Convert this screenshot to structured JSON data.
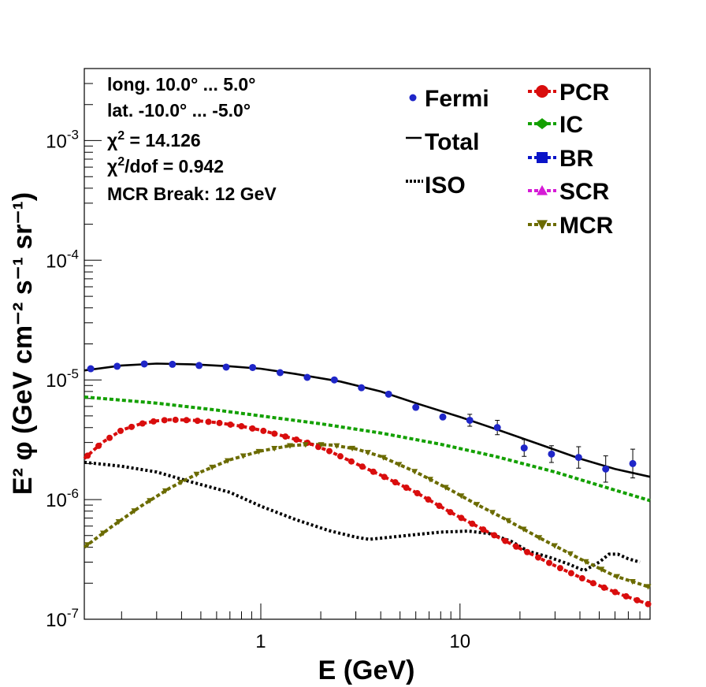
{
  "chart_data": {
    "type": "line",
    "xlabel": "E (GeV)",
    "ylabel": "E² φ (GeV cm⁻² s⁻¹ sr⁻¹)",
    "xscale": "log",
    "yscale": "log",
    "xlim": [
      0.13,
      90
    ],
    "ylim": [
      1e-07,
      0.004
    ],
    "grid": false,
    "legend_placement": "top-right",
    "x_ticks": [
      {
        "value": 1,
        "label": "1"
      },
      {
        "value": 10,
        "label": "10"
      }
    ],
    "y_ticks": [
      {
        "value": 1e-07,
        "base": "10",
        "exp": "-7"
      },
      {
        "value": 1e-06,
        "base": "10",
        "exp": "-6"
      },
      {
        "value": 1e-05,
        "base": "10",
        "exp": "-5"
      },
      {
        "value": 0.0001,
        "base": "10",
        "exp": "-4"
      },
      {
        "value": 0.001,
        "base": "10",
        "exp": "-3"
      }
    ],
    "info": [
      "long. 10.0° ... 5.0°",
      "lat. -10.0° ... -5.0°",
      "χ² = 14.126",
      "χ²/dof = 0.942",
      "MCR Break: 12 GeV"
    ],
    "legend_col1": [
      {
        "name": "Fermi",
        "color": "#1f26c8",
        "marker": "dot"
      },
      {
        "name": "Total",
        "color": "#000000",
        "marker": "line"
      },
      {
        "name": "ISO",
        "color": "#000000",
        "marker": "dotted"
      }
    ],
    "legend_col2": [
      {
        "name": "PCR",
        "color": "#d90d0d",
        "marker": "circle"
      },
      {
        "name": "IC",
        "color": "#13a000",
        "marker": "diamond"
      },
      {
        "name": "BR",
        "color": "#0a14c8",
        "marker": "square"
      },
      {
        "name": "SCR",
        "color": "#d61ad6",
        "marker": "triangle-up"
      },
      {
        "name": "MCR",
        "color": "#6b6b00",
        "marker": "triangle-down"
      }
    ],
    "series": [
      {
        "name": "Fermi",
        "color": "#1f26c8",
        "style": "points",
        "x": [
          0.14,
          0.19,
          0.26,
          0.36,
          0.49,
          0.67,
          0.91,
          1.25,
          1.71,
          2.34,
          3.2,
          4.38,
          6.0,
          8.2,
          11.2,
          15.4,
          21.0,
          28.8,
          39.4,
          53.9,
          73.7
        ],
        "y": [
          1.24e-05,
          1.3e-05,
          1.36e-05,
          1.35e-05,
          1.32e-05,
          1.28e-05,
          1.27e-05,
          1.15e-05,
          1.05e-05,
          1e-05,
          8.6e-06,
          7.6e-06,
          5.9e-06,
          4.9e-06,
          4.6e-06,
          4e-06,
          2.7e-06,
          2.4e-06,
          2.25e-06,
          1.8e-06,
          2e-06
        ],
        "err": [
          0,
          0,
          0,
          0,
          0,
          0,
          0,
          0,
          0,
          0,
          0,
          0,
          0,
          0,
          0.05,
          0.06,
          0.07,
          0.07,
          0.09,
          0.11,
          0.12
        ]
      },
      {
        "name": "Total",
        "color": "#000000",
        "style": "solid",
        "x": [
          0.13,
          0.2,
          0.3,
          0.45,
          0.7,
          1.0,
          1.5,
          2.5,
          4.0,
          6.0,
          10,
          15,
          25,
          40,
          60,
          90
        ],
        "y": [
          1.2e-05,
          1.32e-05,
          1.37e-05,
          1.35e-05,
          1.3e-05,
          1.24e-05,
          1.12e-05,
          9.7e-06,
          8e-06,
          6.4e-06,
          4.9e-06,
          3.9e-06,
          2.9e-06,
          2.2e-06,
          1.8e-06,
          1.55e-06
        ]
      },
      {
        "name": "IC",
        "color": "#13a000",
        "style": "dashed",
        "x": [
          0.13,
          0.3,
          0.6,
          1.0,
          2.0,
          4.0,
          8.0,
          15,
          30,
          60,
          90
        ],
        "y": [
          7.2e-06,
          6.4e-06,
          5.6e-06,
          5e-06,
          4.3e-06,
          3.6e-06,
          2.9e-06,
          2.3e-06,
          1.7e-06,
          1.2e-06,
          9.8e-07
        ]
      },
      {
        "name": "PCR",
        "color": "#d90d0d",
        "style": "dashed",
        "x": [
          0.13,
          0.16,
          0.2,
          0.25,
          0.3,
          0.35,
          0.45,
          0.6,
          0.8,
          1.0,
          1.3,
          1.7,
          2.2,
          3.0,
          4.0,
          6.0,
          9.0,
          14,
          20,
          30,
          45,
          65,
          90
        ],
        "y": [
          2.2e-06,
          3e-06,
          3.8e-06,
          4.3e-06,
          4.55e-06,
          4.65e-06,
          4.6e-06,
          4.4e-06,
          4.1e-06,
          3.8e-06,
          3.4e-06,
          3e-06,
          2.55e-06,
          2e-06,
          1.6e-06,
          1.15e-06,
          7.8e-07,
          5.3e-07,
          3.9e-07,
          2.8e-07,
          2.05e-07,
          1.6e-07,
          1.32e-07
        ]
      },
      {
        "name": "MCR",
        "color": "#6b6b00",
        "style": "dashed",
        "x": [
          0.13,
          0.18,
          0.25,
          0.35,
          0.5,
          0.7,
          1.0,
          1.4,
          1.8,
          2.3,
          3.0,
          4.0,
          6.0,
          9.0,
          12,
          16,
          25,
          40,
          60,
          90
        ],
        "y": [
          4e-07,
          6e-07,
          8.8e-07,
          1.25e-06,
          1.7e-06,
          2.15e-06,
          2.55e-06,
          2.82e-06,
          2.9e-06,
          2.85e-06,
          2.65e-06,
          2.3e-06,
          1.7e-06,
          1.2e-06,
          9.2e-07,
          7.2e-07,
          4.8e-07,
          3.2e-07,
          2.3e-07,
          1.85e-07
        ]
      },
      {
        "name": "ISO",
        "color": "#000000",
        "style": "dotted",
        "x": [
          0.13,
          0.2,
          0.3,
          0.45,
          0.7,
          1.0,
          1.5,
          2.2,
          3.0,
          3.5,
          4.5,
          6.0,
          8.0,
          11,
          14,
          18,
          22,
          28,
          35,
          42,
          50,
          56,
          62,
          70,
          80
        ],
        "y": [
          2.05e-06,
          1.9e-06,
          1.7e-06,
          1.4e-06,
          1.15e-06,
          8.8e-07,
          6.8e-07,
          5.5e-07,
          4.85e-07,
          4.65e-07,
          4.85e-07,
          5.1e-07,
          5.35e-07,
          5.45e-07,
          5.2e-07,
          4.5e-07,
          3.7e-07,
          3.3e-07,
          2.9e-07,
          2.55e-07,
          3e-07,
          3.5e-07,
          3.5e-07,
          3.2e-07,
          3e-07
        ]
      }
    ]
  }
}
